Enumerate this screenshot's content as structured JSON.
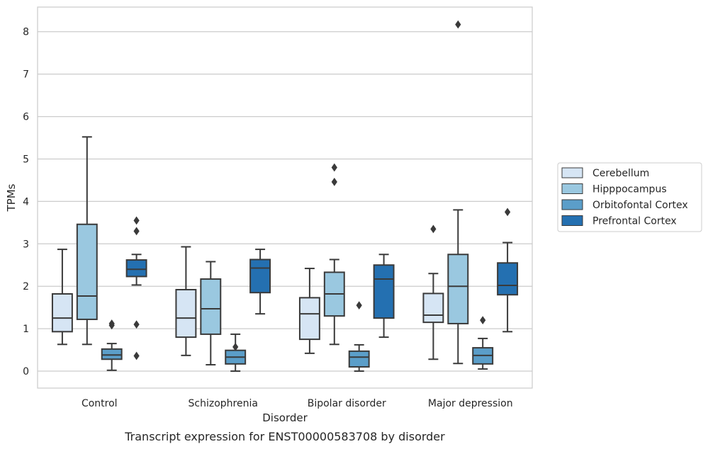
{
  "chart_data": {
    "type": "box",
    "title": "",
    "caption": "Transcript expression for ENST00000583708 by disorder",
    "xlabel": "Disorder",
    "ylabel": "TPMs",
    "ylim": [
      -0.4,
      8.58
    ],
    "yticks": [
      0,
      1,
      2,
      3,
      4,
      5,
      6,
      7,
      8
    ],
    "grid": "horizontal",
    "legend_position": "right",
    "categories": [
      "Control",
      "Schizophrenia",
      "Bipolar disorder",
      "Major depression"
    ],
    "series": [
      {
        "name": "Cerebellum",
        "color": "#d6e5f4",
        "boxes": [
          {
            "whisker_low": 0.63,
            "q1": 0.93,
            "median": 1.25,
            "q3": 1.82,
            "whisker_high": 2.87,
            "outliers": []
          },
          {
            "whisker_low": 0.37,
            "q1": 0.8,
            "median": 1.25,
            "q3": 1.92,
            "whisker_high": 2.93,
            "outliers": []
          },
          {
            "whisker_low": 0.42,
            "q1": 0.75,
            "median": 1.35,
            "q3": 1.73,
            "whisker_high": 2.42,
            "outliers": []
          },
          {
            "whisker_low": 0.28,
            "q1": 1.15,
            "median": 1.32,
            "q3": 1.83,
            "whisker_high": 2.3,
            "outliers": [
              3.35
            ]
          }
        ]
      },
      {
        "name": "Hipppocampus",
        "color": "#9ac8e0",
        "boxes": [
          {
            "whisker_low": 0.63,
            "q1": 1.22,
            "median": 1.77,
            "q3": 3.46,
            "whisker_high": 5.52,
            "outliers": []
          },
          {
            "whisker_low": 0.15,
            "q1": 0.87,
            "median": 1.47,
            "q3": 2.17,
            "whisker_high": 2.58,
            "outliers": []
          },
          {
            "whisker_low": 0.63,
            "q1": 1.3,
            "median": 1.82,
            "q3": 2.33,
            "whisker_high": 2.63,
            "outliers": [
              4.46,
              4.8
            ]
          },
          {
            "whisker_low": 0.18,
            "q1": 1.12,
            "median": 2.0,
            "q3": 2.75,
            "whisker_high": 3.8,
            "outliers": [
              8.17
            ]
          }
        ]
      },
      {
        "name": "Orbitofontal Cortex",
        "color": "#5b9ec9",
        "boxes": [
          {
            "whisker_low": 0.02,
            "q1": 0.28,
            "median": 0.38,
            "q3": 0.52,
            "whisker_high": 0.65,
            "outliers": [
              1.08,
              1.12
            ]
          },
          {
            "whisker_low": 0.0,
            "q1": 0.17,
            "median": 0.33,
            "q3": 0.49,
            "whisker_high": 0.87,
            "outliers": [
              0.57
            ]
          },
          {
            "whisker_low": 0.0,
            "q1": 0.1,
            "median": 0.33,
            "q3": 0.47,
            "whisker_high": 0.62,
            "outliers": [
              1.55
            ]
          },
          {
            "whisker_low": 0.05,
            "q1": 0.17,
            "median": 0.37,
            "q3": 0.55,
            "whisker_high": 0.77,
            "outliers": [
              1.2
            ]
          }
        ]
      },
      {
        "name": "Prefrontal Cortex",
        "color": "#2470b1",
        "boxes": [
          {
            "whisker_low": 2.03,
            "q1": 2.23,
            "median": 2.4,
            "q3": 2.62,
            "whisker_high": 2.75,
            "outliers": [
              0.36,
              1.1,
              3.3,
              3.55
            ]
          },
          {
            "whisker_low": 1.35,
            "q1": 1.85,
            "median": 2.43,
            "q3": 2.63,
            "whisker_high": 2.87,
            "outliers": []
          },
          {
            "whisker_low": 0.8,
            "q1": 1.25,
            "median": 2.17,
            "q3": 2.5,
            "whisker_high": 2.75,
            "outliers": []
          },
          {
            "whisker_low": 0.93,
            "q1": 1.8,
            "median": 2.02,
            "q3": 2.55,
            "whisker_high": 3.03,
            "outliers": [
              3.75
            ]
          }
        ]
      }
    ]
  }
}
